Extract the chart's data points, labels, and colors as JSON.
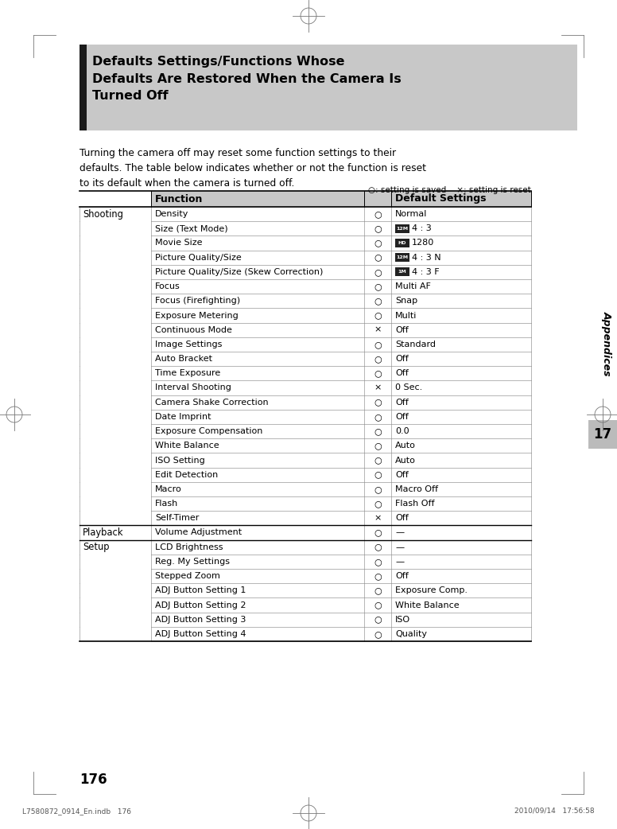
{
  "page_bg": "#ffffff",
  "title_bg": "#c8c8c8",
  "title_bar_color": "#1a1a1a",
  "title_text": "Defaults Settings/Functions Whose\nDefaults Are Restored When the Camera Is\nTurned Off",
  "intro_text": "Turning the camera off may reset some function settings to their\ndefaults. The table below indicates whether or not the function is reset\nto its default when the camera is turned off.",
  "legend_text": "○: setting is saved    ×: setting is reset",
  "header_bg": "#c8c8c8",
  "rows": [
    {
      "group": "Shooting",
      "function": "Density",
      "symbol": "○",
      "default": "Normal",
      "icon": ""
    },
    {
      "group": "",
      "function": "Size (Text Mode)",
      "symbol": "○",
      "default": "4 : 3",
      "icon": "12M"
    },
    {
      "group": "",
      "function": "Movie Size",
      "symbol": "○",
      "default": "1280",
      "icon": "HD"
    },
    {
      "group": "",
      "function": "Picture Quality/Size",
      "symbol": "○",
      "default": "4 : 3 N",
      "icon": "12M"
    },
    {
      "group": "",
      "function": "Picture Quality/Size (Skew Correction)",
      "symbol": "○",
      "default": "4 : 3 F",
      "icon": "1M"
    },
    {
      "group": "",
      "function": "Focus",
      "symbol": "○",
      "default": "Multi AF",
      "icon": ""
    },
    {
      "group": "",
      "function": "Focus (Firefighting)",
      "symbol": "○",
      "default": "Snap",
      "icon": ""
    },
    {
      "group": "",
      "function": "Exposure Metering",
      "symbol": "○",
      "default": "Multi",
      "icon": ""
    },
    {
      "group": "",
      "function": "Continuous Mode",
      "symbol": "×",
      "default": "Off",
      "icon": ""
    },
    {
      "group": "",
      "function": "Image Settings",
      "symbol": "○",
      "default": "Standard",
      "icon": ""
    },
    {
      "group": "",
      "function": "Auto Bracket",
      "symbol": "○",
      "default": "Off",
      "icon": ""
    },
    {
      "group": "",
      "function": "Time Exposure",
      "symbol": "○",
      "default": "Off",
      "icon": ""
    },
    {
      "group": "",
      "function": "Interval Shooting",
      "symbol": "×",
      "default": "0 Sec.",
      "icon": ""
    },
    {
      "group": "",
      "function": "Camera Shake Correction",
      "symbol": "○",
      "default": "Off",
      "icon": ""
    },
    {
      "group": "",
      "function": "Date Imprint",
      "symbol": "○",
      "default": "Off",
      "icon": ""
    },
    {
      "group": "",
      "function": "Exposure Compensation",
      "symbol": "○",
      "default": "0.0",
      "icon": ""
    },
    {
      "group": "",
      "function": "White Balance",
      "symbol": "○",
      "default": "Auto",
      "icon": ""
    },
    {
      "group": "",
      "function": "ISO Setting",
      "symbol": "○",
      "default": "Auto",
      "icon": ""
    },
    {
      "group": "",
      "function": "Edit Detection",
      "symbol": "○",
      "default": "Off",
      "icon": ""
    },
    {
      "group": "",
      "function": "Macro",
      "symbol": "○",
      "default": "Macro Off",
      "icon": ""
    },
    {
      "group": "",
      "function": "Flash",
      "symbol": "○",
      "default": "Flash Off",
      "icon": ""
    },
    {
      "group": "",
      "function": "Self-Timer",
      "symbol": "×",
      "default": "Off",
      "icon": ""
    },
    {
      "group": "Playback",
      "function": "Volume Adjustment",
      "symbol": "○",
      "default": "—",
      "icon": ""
    },
    {
      "group": "Setup",
      "function": "LCD Brightness",
      "symbol": "○",
      "default": "—",
      "icon": ""
    },
    {
      "group": "",
      "function": "Reg. My Settings",
      "symbol": "○",
      "default": "—",
      "icon": ""
    },
    {
      "group": "",
      "function": "Stepped Zoom",
      "symbol": "○",
      "default": "Off",
      "icon": ""
    },
    {
      "group": "",
      "function": "ADJ Button Setting 1",
      "symbol": "○",
      "default": "Exposure Comp.",
      "icon": ""
    },
    {
      "group": "",
      "function": "ADJ Button Setting 2",
      "symbol": "○",
      "default": "White Balance",
      "icon": ""
    },
    {
      "group": "",
      "function": "ADJ Button Setting 3",
      "symbol": "○",
      "default": "ISO",
      "icon": ""
    },
    {
      "group": "",
      "function": "ADJ Button Setting 4",
      "symbol": "○",
      "default": "Quality",
      "icon": ""
    }
  ],
  "footer_text_left": "L7580872_0914_En.indb   176",
  "footer_text_right": "2010/09/14   17:56:58",
  "page_number": "176",
  "sidebar_label": "Appendices",
  "chapter_number": "17"
}
